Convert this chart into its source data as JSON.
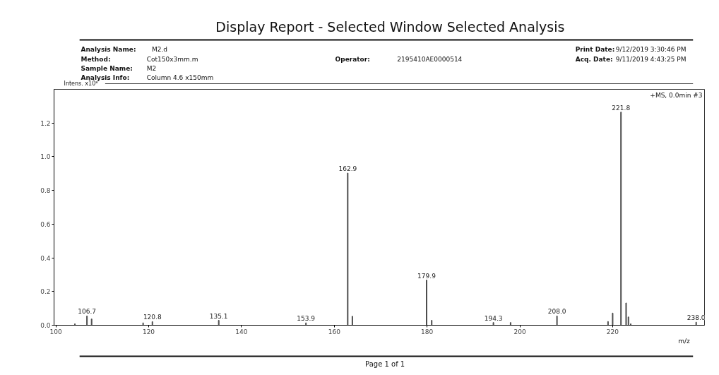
{
  "chart_data": {
    "type": "bar",
    "title": "Display Report - Selected Window Selected Analysis",
    "xlabel": "m/z",
    "ylabel": "Intens. x10⁸",
    "x": [
      104.1,
      106.7,
      107.7,
      118.8,
      120.8,
      135.1,
      153.9,
      162.9,
      163.9,
      179.9,
      181.0,
      194.3,
      198.0,
      208.0,
      219.0,
      220.0,
      221.8,
      222.9,
      223.4,
      223.9,
      238.0
    ],
    "values": [
      0.008,
      0.055,
      0.037,
      0.014,
      0.021,
      0.029,
      0.014,
      0.903,
      0.053,
      0.268,
      0.029,
      0.016,
      0.016,
      0.055,
      0.022,
      0.072,
      1.265,
      0.132,
      0.049,
      0.008,
      0.018
    ],
    "color": "#4d4d4d",
    "xlim": [
      99.6,
      239.8
    ],
    "xticks": [
      100,
      120,
      140,
      160,
      180,
      200,
      220
    ],
    "ylim": [
      0,
      1.4
    ],
    "yticks": [
      {
        "value": 0,
        "label": "0.0"
      },
      {
        "value": 0.2,
        "label": "0.2"
      },
      {
        "value": 0.4,
        "label": "0.4"
      },
      {
        "value": 0.6,
        "label": "0.6"
      },
      {
        "value": 0.8,
        "label": "0.8"
      },
      {
        "value": 1.0,
        "label": "1.0"
      },
      {
        "value": 1.2,
        "label": "1.2"
      }
    ],
    "grid": false,
    "annotations": [
      "Analysis Name:",
      "M2.d",
      "Method:",
      "Cot150x3mm.m",
      "Sample Name:",
      "M2",
      "Analysis Info:",
      "Column 4.6 x150mm",
      "Operator:",
      "2195410AE0000514",
      "Print Date:",
      "9/12/2019  3:30:46 PM",
      "Acq. Date:",
      "9/11/2019 4:43:25 PM",
      "+MS, 0.0min #3",
      "Page  1 of 1",
      {
        "text": "106.7",
        "x": 106.7,
        "y": 0.055
      },
      {
        "text": "120.8",
        "x": 120.8,
        "y": 0.021
      },
      {
        "text": "135.1",
        "x": 135.1,
        "y": 0.029
      },
      {
        "text": "153.9",
        "x": 153.9,
        "y": 0.014
      },
      {
        "text": "162.9",
        "x": 162.9,
        "y": 0.903
      },
      {
        "text": "179.9",
        "x": 179.9,
        "y": 0.268
      },
      {
        "text": "194.3",
        "x": 194.3,
        "y": 0.016
      },
      {
        "text": "208.0",
        "x": 208.0,
        "y": 0.055
      },
      {
        "text": "221.8",
        "x": 221.8,
        "y": 1.265
      },
      {
        "text": "238.0",
        "x": 238.0,
        "y": 0.018
      }
    ]
  }
}
